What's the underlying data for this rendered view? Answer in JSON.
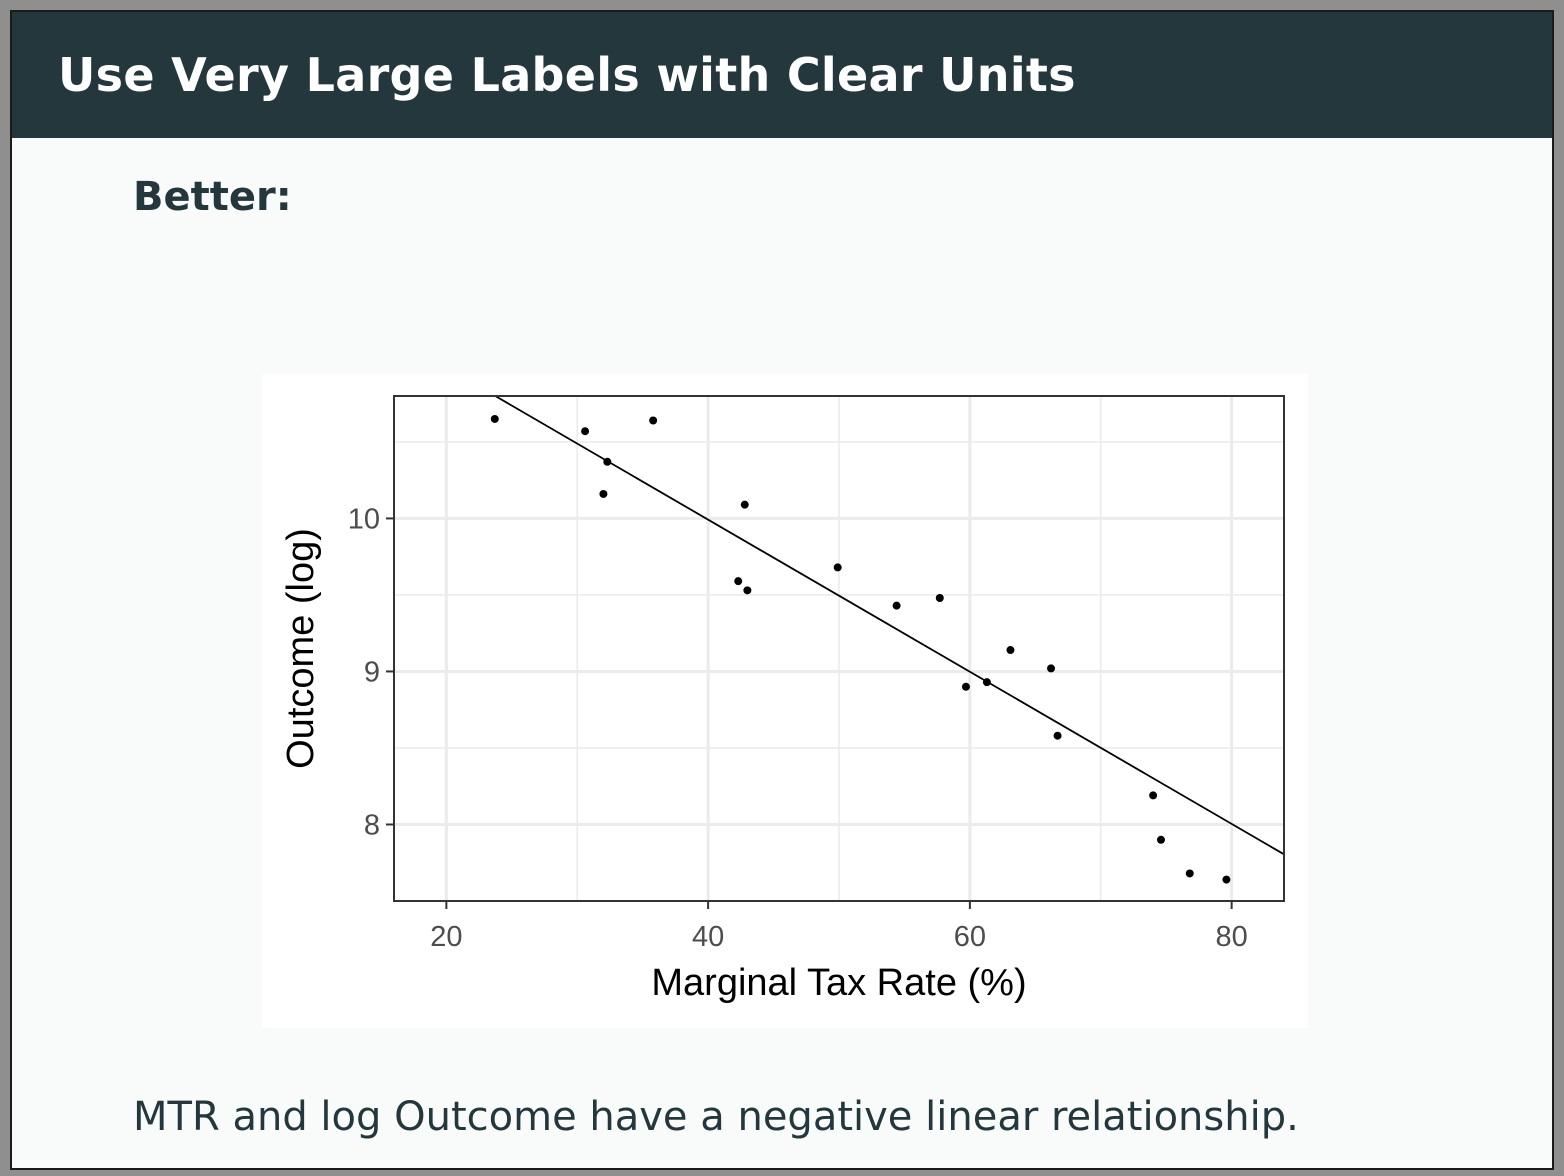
{
  "slide": {
    "title": "Use Very Large Labels with Clear Units",
    "lead": "Better:",
    "caption": "MTR and log Outcome have a negative linear relationship."
  },
  "colors": {
    "header_background": "#23373c",
    "slide_background": "#f9fafa",
    "point": "#000000",
    "grid": "#ebebeb"
  },
  "chart_data": {
    "type": "scatter",
    "xlabel": "Marginal Tax Rate (%)",
    "ylabel": "Outcome (log)",
    "xlim": [
      16,
      84
    ],
    "ylim": [
      7.5,
      10.8
    ],
    "x_ticks": [
      20,
      40,
      60,
      80
    ],
    "y_ticks": [
      8,
      9,
      10
    ],
    "x_tick_labels": [
      "20",
      "40",
      "60",
      "80"
    ],
    "y_tick_labels": [
      "8",
      "9",
      "10"
    ],
    "grid": true,
    "theme": "bw",
    "points": [
      {
        "x": 23.7,
        "y": 10.65
      },
      {
        "x": 30.6,
        "y": 10.57
      },
      {
        "x": 32.3,
        "y": 10.37
      },
      {
        "x": 32.0,
        "y": 10.16
      },
      {
        "x": 35.8,
        "y": 10.64
      },
      {
        "x": 42.8,
        "y": 10.09
      },
      {
        "x": 42.3,
        "y": 9.59
      },
      {
        "x": 43.0,
        "y": 9.53
      },
      {
        "x": 49.9,
        "y": 9.68
      },
      {
        "x": 54.4,
        "y": 9.43
      },
      {
        "x": 57.7,
        "y": 9.48
      },
      {
        "x": 59.7,
        "y": 8.9
      },
      {
        "x": 61.3,
        "y": 8.93
      },
      {
        "x": 63.1,
        "y": 9.14
      },
      {
        "x": 66.2,
        "y": 9.02
      },
      {
        "x": 66.7,
        "y": 8.58
      },
      {
        "x": 74.0,
        "y": 8.19
      },
      {
        "x": 74.6,
        "y": 7.9
      },
      {
        "x": 76.8,
        "y": 7.68
      },
      {
        "x": 79.6,
        "y": 7.64
      }
    ],
    "fit_line": {
      "type": "linear",
      "slope": -0.0497,
      "intercept": 11.98
    }
  }
}
